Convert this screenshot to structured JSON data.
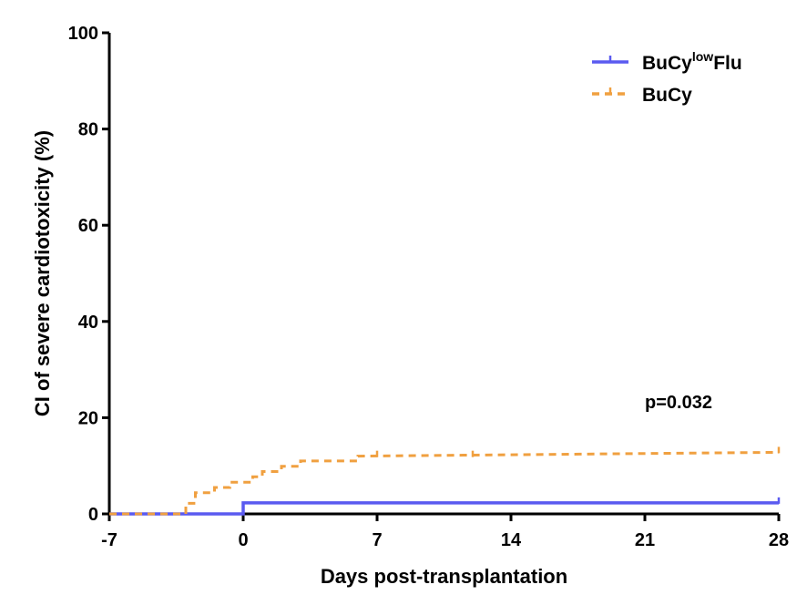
{
  "chart_data": {
    "type": "line",
    "title": "",
    "xlabel": "Days post-transplantation",
    "ylabel": "CI of severe cardiotoxicity (%)",
    "xlim": [
      -7,
      28
    ],
    "ylim": [
      0,
      100
    ],
    "x_ticks": [
      "-7",
      "0",
      "7",
      "14",
      "21",
      "28"
    ],
    "y_ticks": [
      "0",
      "20",
      "40",
      "60",
      "80",
      "100"
    ],
    "annotation": "p=0.032",
    "legend_position": "top-right",
    "series": [
      {
        "name": "BuCy",
        "name_sup": "low",
        "name_suffix": "Flu",
        "color": "#5a5af0",
        "style": "solid",
        "step_points": [
          [
            -7,
            0
          ],
          [
            0,
            0
          ],
          [
            0,
            2.3
          ],
          [
            28,
            2.3
          ]
        ],
        "censor_x": [
          28
        ]
      },
      {
        "name": "BuCy",
        "color": "#f0a040",
        "style": "dashed",
        "step_points": [
          [
            -7,
            0
          ],
          [
            -3,
            0
          ],
          [
            -3,
            2.2
          ],
          [
            -2.5,
            2.2
          ],
          [
            -2.5,
            4.4
          ],
          [
            -1.5,
            4.4
          ],
          [
            -1.5,
            5.5
          ],
          [
            -0.7,
            5.5
          ],
          [
            -0.7,
            6.6
          ],
          [
            0.5,
            6.6
          ],
          [
            0.5,
            7.7
          ],
          [
            1,
            7.7
          ],
          [
            1,
            8.8
          ],
          [
            2,
            8.8
          ],
          [
            2,
            9.9
          ],
          [
            3,
            9.9
          ],
          [
            3,
            11
          ],
          [
            6,
            11
          ],
          [
            6,
            12
          ],
          [
            28,
            12.8
          ]
        ],
        "censor_x": [
          7,
          12,
          28
        ]
      }
    ]
  }
}
